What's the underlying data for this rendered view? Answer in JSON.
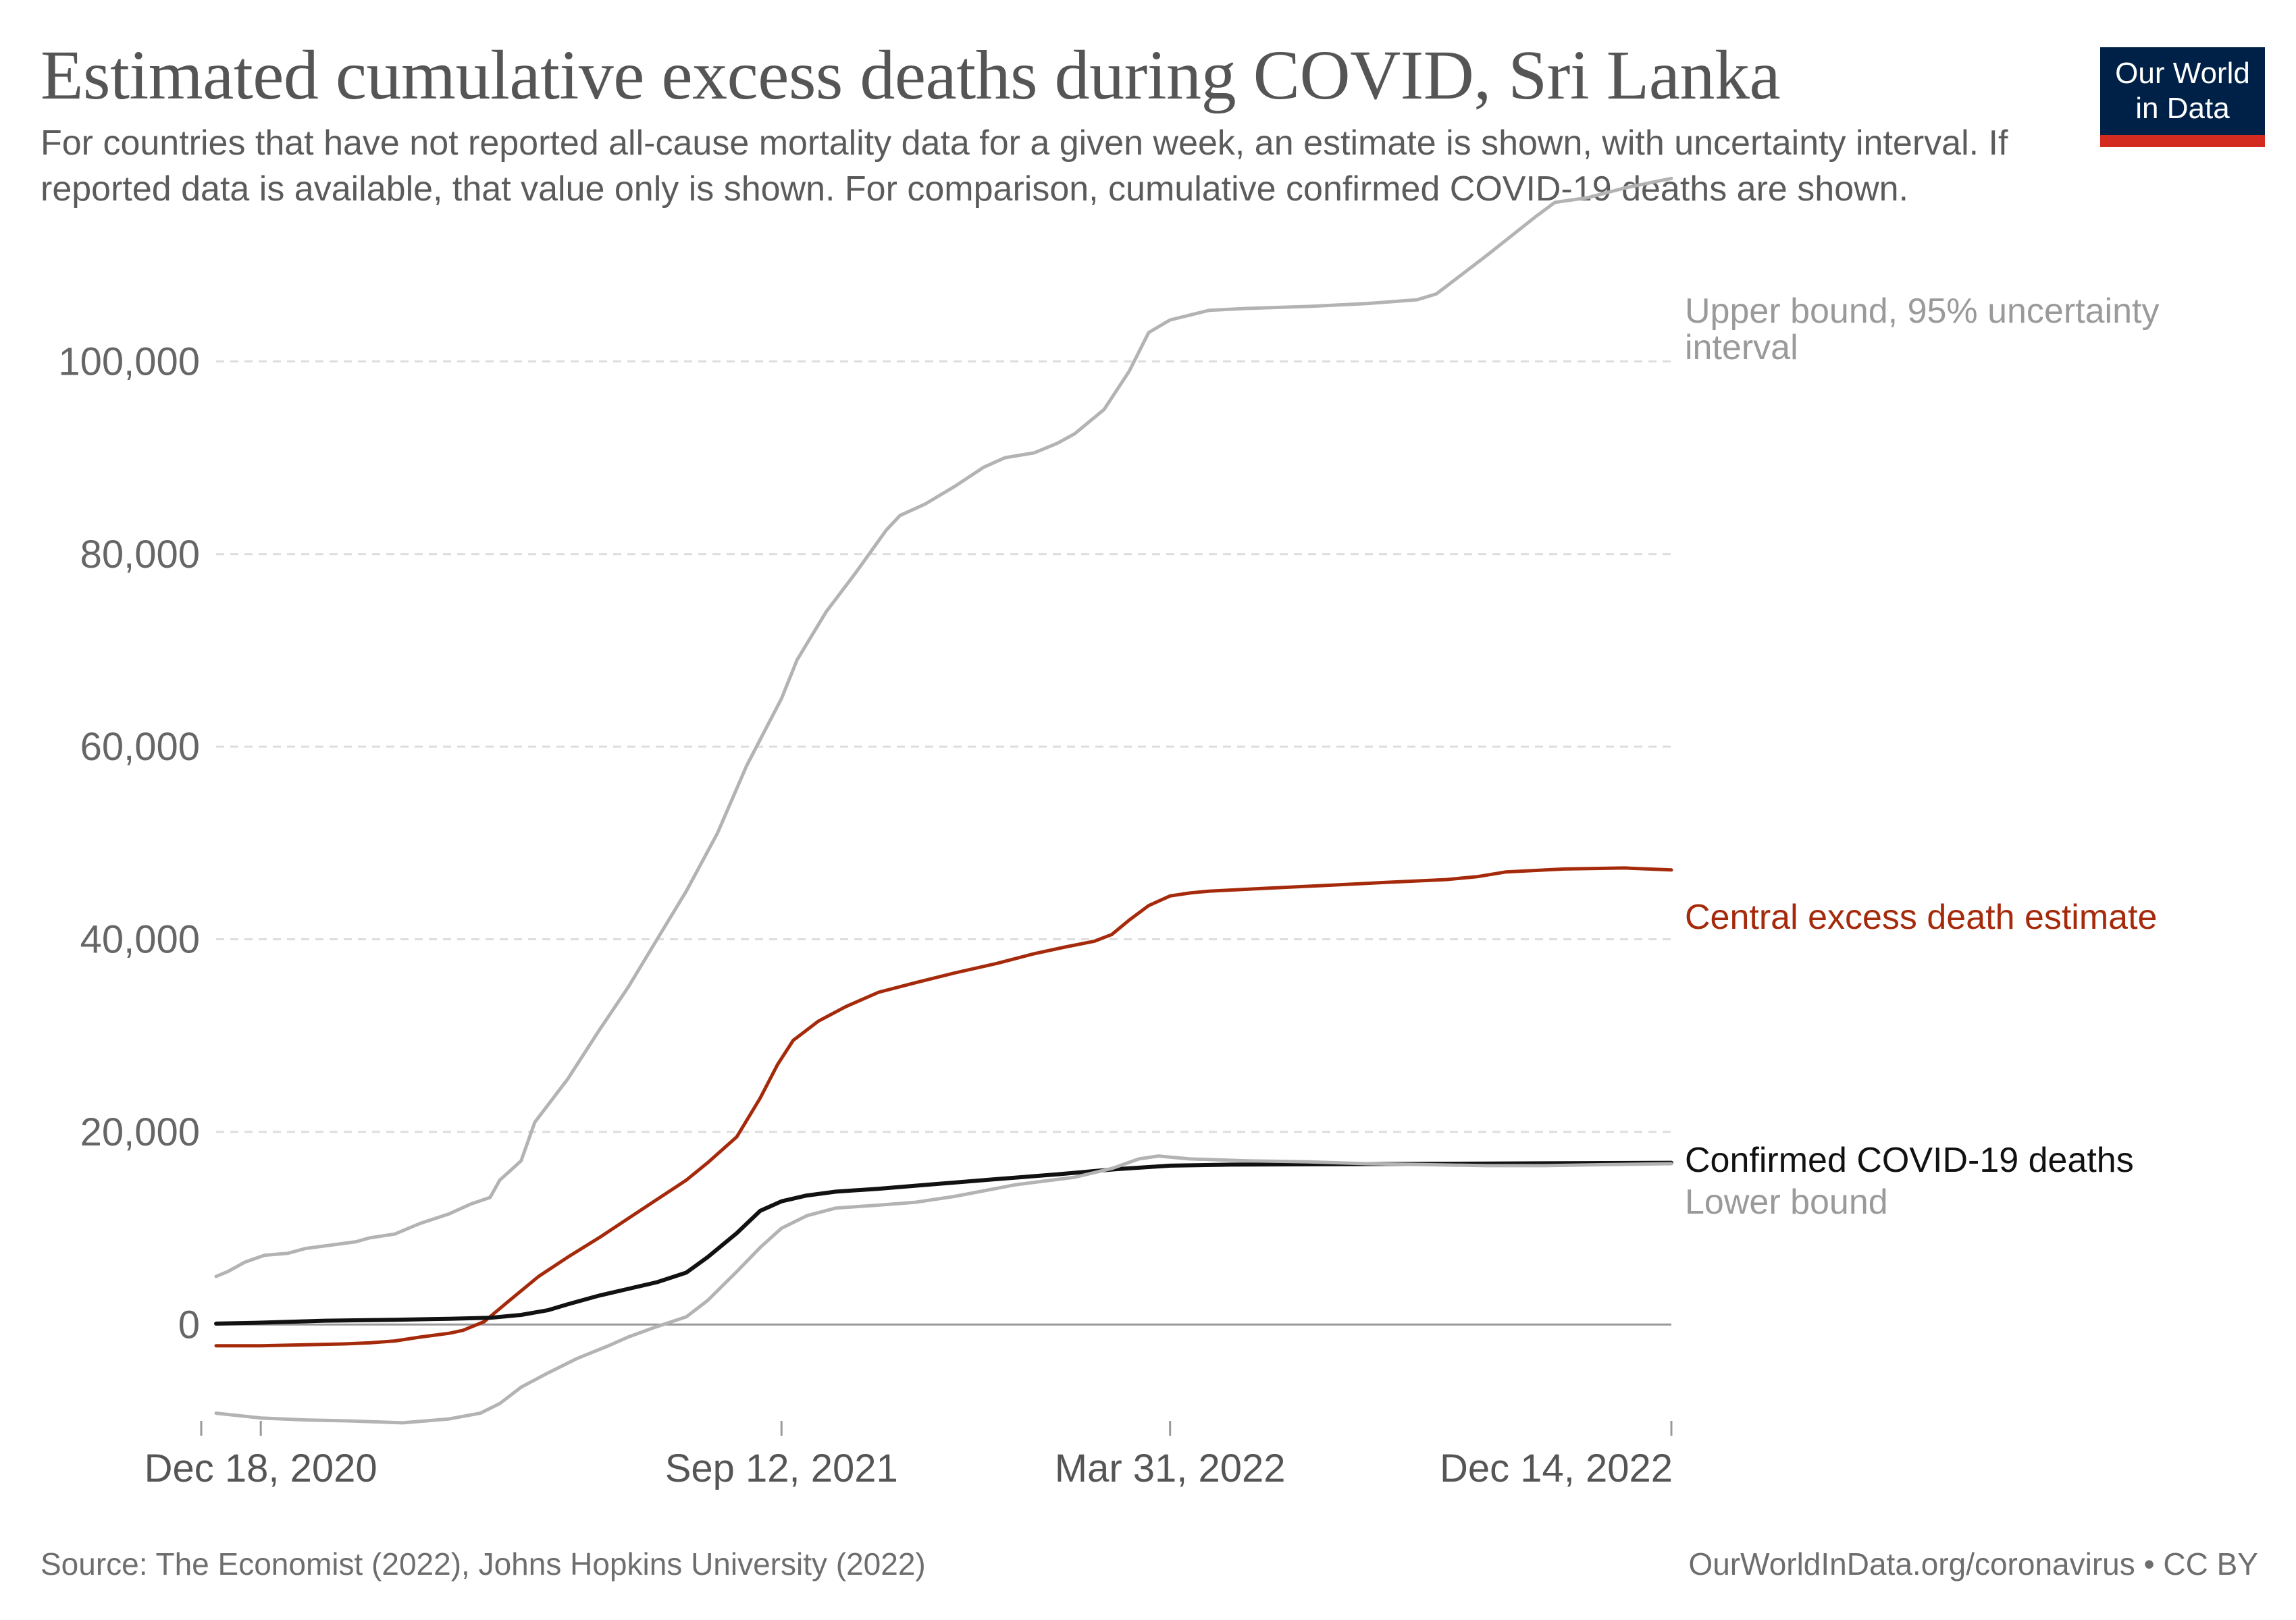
{
  "header": {
    "title": "Estimated cumulative excess deaths during COVID, Sri Lanka",
    "subtitle": "For countries that have not reported all-cause mortality data for a given week, an estimate is shown, with uncertainty interval. If reported data is available, that value only is shown. For comparison, cumulative confirmed COVID-19 deaths are shown."
  },
  "logo": {
    "line1": "Our World",
    "line2": "in Data"
  },
  "footer": {
    "source": "Source: The Economist (2022), Johns Hopkins University (2022)",
    "link": "OurWorldInData.org/coronavirus • CC BY"
  },
  "colors": {
    "upper": "#b3b3b3",
    "lower": "#b3b3b3",
    "central": "#a52a0b",
    "confirmed": "#111111",
    "grid": "#dddddd",
    "axis": "#999999",
    "label_gray": "#9a9a9a"
  },
  "chart_data": {
    "type": "line",
    "x_axis": {
      "type": "date",
      "min": "2020-11-25",
      "max": "2022-12-14",
      "ticks": [
        "Dec 18, 2020",
        "Sep 12, 2021",
        "Mar 31, 2022",
        "Dec 14, 2022"
      ],
      "tick_dates": [
        "2020-12-18",
        "2021-09-12",
        "2022-03-31",
        "2022-12-14"
      ]
    },
    "y_axis": {
      "min": -10000,
      "max": 120000,
      "ticks": [
        0,
        20000,
        40000,
        60000,
        80000,
        100000
      ],
      "tick_labels": [
        "0",
        "20,000",
        "40,000",
        "60,000",
        "80,000",
        "100,000"
      ]
    },
    "grid": "horizontal dashed",
    "legend": "inline labels at line ends",
    "series": [
      {
        "key": "upper",
        "name": "Upper bound, 95% uncertainty interval",
        "points": [
          [
            "2020-11-25",
            5000
          ],
          [
            "2020-12-01",
            5500
          ],
          [
            "2020-12-10",
            6500
          ],
          [
            "2020-12-20",
            7200
          ],
          [
            "2021-01-01",
            7400
          ],
          [
            "2021-01-10",
            7900
          ],
          [
            "2021-01-25",
            8300
          ],
          [
            "2021-02-05",
            8600
          ],
          [
            "2021-02-12",
            9000
          ],
          [
            "2021-02-25",
            9400
          ],
          [
            "2021-03-10",
            10500
          ],
          [
            "2021-03-25",
            11500
          ],
          [
            "2021-04-05",
            12500
          ],
          [
            "2021-04-15",
            13200
          ],
          [
            "2021-04-20",
            15000
          ],
          [
            "2021-05-01",
            17000
          ],
          [
            "2021-05-08",
            21000
          ],
          [
            "2021-05-25",
            25500
          ],
          [
            "2021-06-10",
            30500
          ],
          [
            "2021-06-25",
            35000
          ],
          [
            "2021-07-10",
            40000
          ],
          [
            "2021-07-25",
            45000
          ],
          [
            "2021-08-10",
            51000
          ],
          [
            "2021-08-25",
            58000
          ],
          [
            "2021-09-12",
            65000
          ],
          [
            "2021-09-20",
            69000
          ],
          [
            "2021-10-05",
            74000
          ],
          [
            "2021-10-20",
            78000
          ],
          [
            "2021-11-05",
            82500
          ],
          [
            "2021-11-12",
            84000
          ],
          [
            "2021-11-25",
            85200
          ],
          [
            "2021-12-10",
            87000
          ],
          [
            "2021-12-25",
            89000
          ],
          [
            "2022-01-05",
            90000
          ],
          [
            "2022-01-20",
            90500
          ],
          [
            "2022-02-01",
            91500
          ],
          [
            "2022-02-10",
            92500
          ],
          [
            "2022-02-25",
            95000
          ],
          [
            "2022-03-10",
            99000
          ],
          [
            "2022-03-20",
            103000
          ],
          [
            "2022-03-31",
            104300
          ],
          [
            "2022-04-10",
            104800
          ],
          [
            "2022-04-20",
            105300
          ],
          [
            "2022-05-10",
            105500
          ],
          [
            "2022-06-10",
            105700
          ],
          [
            "2022-07-10",
            106000
          ],
          [
            "2022-08-05",
            106400
          ],
          [
            "2022-08-15",
            107000
          ],
          [
            "2022-09-10",
            111000
          ],
          [
            "2022-10-05",
            115000
          ],
          [
            "2022-10-15",
            116500
          ],
          [
            "2022-11-01",
            117000
          ],
          [
            "2022-11-20",
            118000
          ],
          [
            "2022-12-14",
            119000
          ]
        ]
      },
      {
        "key": "central",
        "name": "Central excess death estimate",
        "points": [
          [
            "2020-11-25",
            -2200
          ],
          [
            "2020-12-18",
            -2200
          ],
          [
            "2021-01-10",
            -2100
          ],
          [
            "2021-02-01",
            -2000
          ],
          [
            "2021-02-12",
            -1900
          ],
          [
            "2021-02-25",
            -1700
          ],
          [
            "2021-03-10",
            -1300
          ],
          [
            "2021-03-25",
            -900
          ],
          [
            "2021-04-01",
            -600
          ],
          [
            "2021-04-12",
            300
          ],
          [
            "2021-04-25",
            2500
          ],
          [
            "2021-05-10",
            5000
          ],
          [
            "2021-05-25",
            7000
          ],
          [
            "2021-06-10",
            9000
          ],
          [
            "2021-06-25",
            11000
          ],
          [
            "2021-07-10",
            13000
          ],
          [
            "2021-07-25",
            15000
          ],
          [
            "2021-08-05",
            16800
          ],
          [
            "2021-08-20",
            19500
          ],
          [
            "2021-09-01",
            23500
          ],
          [
            "2021-09-10",
            27000
          ],
          [
            "2021-09-18",
            29500
          ],
          [
            "2021-10-01",
            31500
          ],
          [
            "2021-10-15",
            33000
          ],
          [
            "2021-11-01",
            34500
          ],
          [
            "2021-11-20",
            35500
          ],
          [
            "2021-12-10",
            36500
          ],
          [
            "2022-01-01",
            37500
          ],
          [
            "2022-01-20",
            38500
          ],
          [
            "2022-02-05",
            39200
          ],
          [
            "2022-02-20",
            39800
          ],
          [
            "2022-03-01",
            40500
          ],
          [
            "2022-03-10",
            42000
          ],
          [
            "2022-03-20",
            43500
          ],
          [
            "2022-03-31",
            44500
          ],
          [
            "2022-04-10",
            44800
          ],
          [
            "2022-04-20",
            45000
          ],
          [
            "2022-05-20",
            45300
          ],
          [
            "2022-06-20",
            45600
          ],
          [
            "2022-07-20",
            45900
          ],
          [
            "2022-08-20",
            46200
          ],
          [
            "2022-09-05",
            46500
          ],
          [
            "2022-09-20",
            47000
          ],
          [
            "2022-10-20",
            47300
          ],
          [
            "2022-11-20",
            47400
          ],
          [
            "2022-12-14",
            47200
          ]
        ]
      },
      {
        "key": "confirmed",
        "name": "Confirmed COVID-19 deaths",
        "points": [
          [
            "2020-11-25",
            100
          ],
          [
            "2020-12-18",
            200
          ],
          [
            "2021-01-20",
            400
          ],
          [
            "2021-02-25",
            500
          ],
          [
            "2021-03-25",
            600
          ],
          [
            "2021-04-15",
            700
          ],
          [
            "2021-05-01",
            1000
          ],
          [
            "2021-05-15",
            1500
          ],
          [
            "2021-05-25",
            2100
          ],
          [
            "2021-06-10",
            3000
          ],
          [
            "2021-06-25",
            3700
          ],
          [
            "2021-07-10",
            4400
          ],
          [
            "2021-07-25",
            5400
          ],
          [
            "2021-08-05",
            7000
          ],
          [
            "2021-08-20",
            9500
          ],
          [
            "2021-09-01",
            11800
          ],
          [
            "2021-09-12",
            12800
          ],
          [
            "2021-09-25",
            13400
          ],
          [
            "2021-10-10",
            13800
          ],
          [
            "2021-11-01",
            14100
          ],
          [
            "2021-12-01",
            14600
          ],
          [
            "2022-01-01",
            15100
          ],
          [
            "2022-02-01",
            15600
          ],
          [
            "2022-03-01",
            16100
          ],
          [
            "2022-03-31",
            16500
          ],
          [
            "2022-05-01",
            16600
          ],
          [
            "2022-12-14",
            16800
          ]
        ]
      },
      {
        "key": "lower",
        "name": "Lower bound",
        "points": [
          [
            "2020-11-25",
            -9200
          ],
          [
            "2020-12-18",
            -9700
          ],
          [
            "2021-01-10",
            -9900
          ],
          [
            "2021-02-01",
            -10000
          ],
          [
            "2021-03-01",
            -10200
          ],
          [
            "2021-03-25",
            -9800
          ],
          [
            "2021-04-10",
            -9200
          ],
          [
            "2021-04-20",
            -8200
          ],
          [
            "2021-05-01",
            -6500
          ],
          [
            "2021-05-15",
            -5000
          ],
          [
            "2021-05-30",
            -3500
          ],
          [
            "2021-06-15",
            -2200
          ],
          [
            "2021-06-25",
            -1300
          ],
          [
            "2021-07-10",
            -200
          ],
          [
            "2021-07-25",
            800
          ],
          [
            "2021-08-05",
            2500
          ],
          [
            "2021-08-20",
            5500
          ],
          [
            "2021-09-01",
            8000
          ],
          [
            "2021-09-12",
            10000
          ],
          [
            "2021-09-25",
            11300
          ],
          [
            "2021-10-10",
            12100
          ],
          [
            "2021-11-01",
            12400
          ],
          [
            "2021-11-20",
            12700
          ],
          [
            "2021-12-10",
            13300
          ],
          [
            "2022-01-10",
            14500
          ],
          [
            "2022-02-10",
            15300
          ],
          [
            "2022-03-01",
            16200
          ],
          [
            "2022-03-15",
            17200
          ],
          [
            "2022-03-25",
            17500
          ],
          [
            "2022-04-10",
            17200
          ],
          [
            "2022-05-10",
            17000
          ],
          [
            "2022-06-10",
            16900
          ],
          [
            "2022-07-10",
            16700
          ],
          [
            "2022-08-10",
            16600
          ],
          [
            "2022-09-10",
            16500
          ],
          [
            "2022-10-10",
            16500
          ],
          [
            "2022-11-10",
            16600
          ],
          [
            "2022-12-14",
            16700
          ]
        ]
      }
    ]
  }
}
